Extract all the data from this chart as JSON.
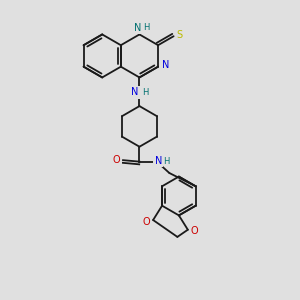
{
  "bg_color": "#e0e0e0",
  "bond_color": "#1a1a1a",
  "bond_width": 1.3,
  "atom_colors": {
    "N_blue": "#0000dd",
    "N_teal": "#007070",
    "O": "#cc0000",
    "S": "#bbbb00",
    "H_teal": "#007070"
  },
  "font_size": 7.0,
  "xlim": [
    0,
    10
  ],
  "ylim": [
    0,
    10
  ]
}
